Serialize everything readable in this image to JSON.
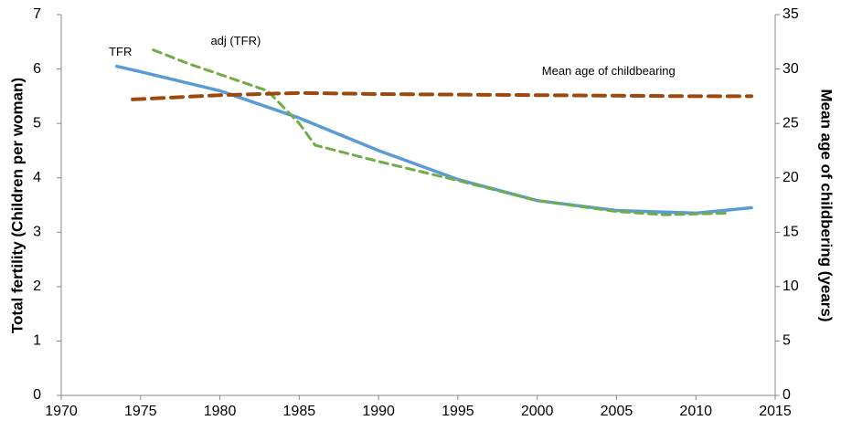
{
  "chart_data": {
    "type": "line",
    "ylabel": "Total fertility (Children per woman)",
    "y2label": "Mean age of childbering (years)",
    "xlim": [
      1970,
      2015
    ],
    "xticks": [
      1970,
      1975,
      1980,
      1985,
      1990,
      1995,
      2000,
      2005,
      2010,
      2015
    ],
    "ylim": [
      0,
      7
    ],
    "yticks": [
      0,
      1,
      2,
      3,
      4,
      5,
      6,
      7
    ],
    "y2lim": [
      0,
      35
    ],
    "y2ticks": [
      0,
      5,
      10,
      15,
      20,
      25,
      30,
      35
    ],
    "series": [
      {
        "name": "TFR",
        "color": "#5b9bd5",
        "x": [
          1973.5,
          1975,
          1980,
          1985,
          1990,
          1995,
          2000,
          2005,
          2010,
          2013.5
        ],
        "values": [
          6.05,
          5.95,
          5.6,
          5.1,
          4.5,
          3.97,
          3.58,
          3.4,
          3.35,
          3.45
        ]
      },
      {
        "name": "adj (TFR)",
        "color": "#70ad47",
        "x": [
          1975.8,
          1978,
          1980,
          1983,
          1985,
          1986,
          1990,
          1995,
          2000,
          2005,
          2008,
          2012
        ],
        "values": [
          6.35,
          6.1,
          5.9,
          5.6,
          5.0,
          4.6,
          4.3,
          3.95,
          3.58,
          3.38,
          3.32,
          3.35
        ]
      },
      {
        "name": "Mean age of childbearing",
        "color": "#9e480e",
        "axis": "y2",
        "x": [
          1974.5,
          1980,
          1985,
          1990,
          2000,
          2010,
          2013.5
        ],
        "values": [
          27.2,
          27.6,
          27.8,
          27.7,
          27.6,
          27.5,
          27.5
        ]
      }
    ]
  }
}
